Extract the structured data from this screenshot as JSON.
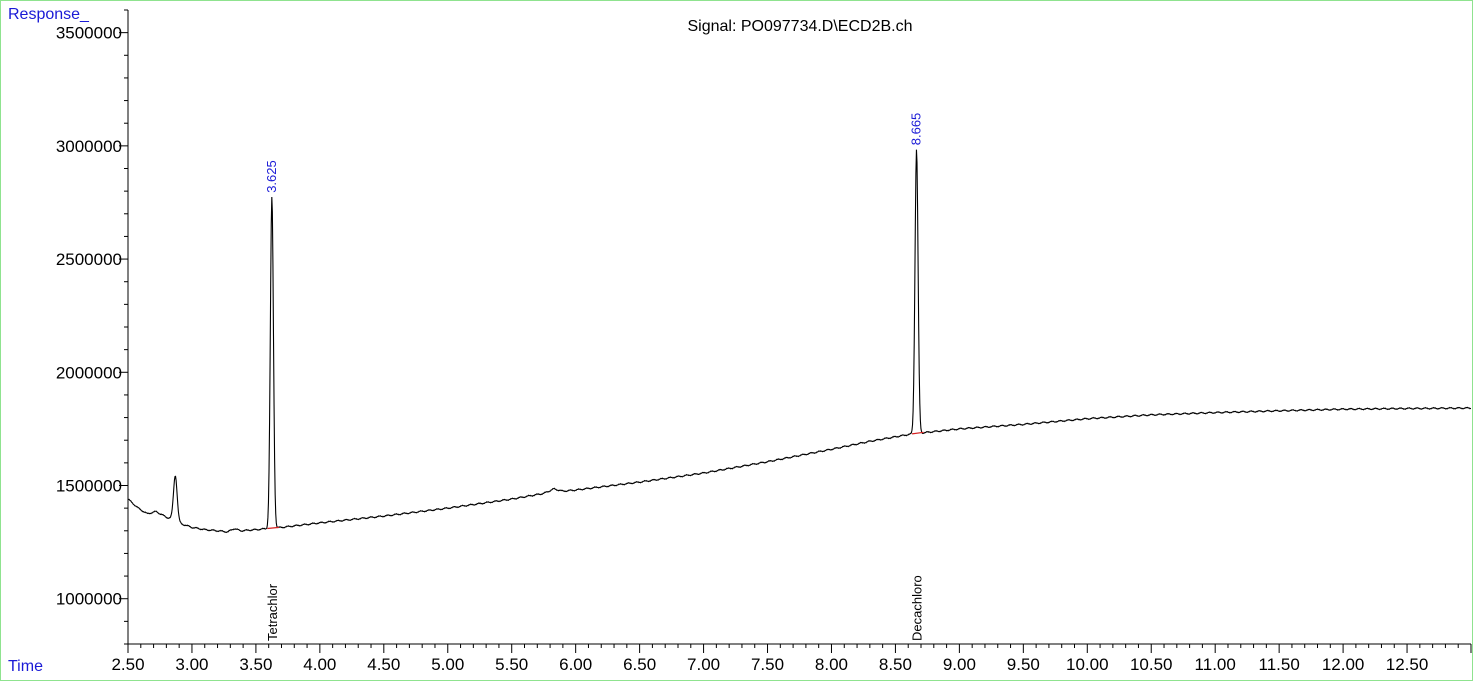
{
  "chart_data": {
    "type": "line",
    "title": "Signal: PO097734.D\\ECD2B.ch",
    "ylabel": "Response_",
    "xlabel": "Time",
    "xlim": [
      2.5,
      13.0
    ],
    "ylim": [
      800000,
      3600000
    ],
    "x_ticks": [
      "2.50",
      "3.00",
      "3.50",
      "4.00",
      "4.50",
      "5.00",
      "5.50",
      "6.00",
      "6.50",
      "7.00",
      "7.50",
      "8.00",
      "8.50",
      "9.00",
      "9.50",
      "10.00",
      "10.50",
      "11.00",
      "11.50",
      "12.00",
      "12.50"
    ],
    "y_ticks": [
      "1000000",
      "1500000",
      "2000000",
      "2500000",
      "3000000",
      "3500000"
    ],
    "colors": {
      "trace": "#000000",
      "baseline": "#d62020",
      "peak_label": "#1a1ad6",
      "frame": "#8fe38f"
    },
    "baseline_points": [
      [
        2.5,
        1440000
      ],
      [
        2.58,
        1400000
      ],
      [
        2.65,
        1375000
      ],
      [
        2.72,
        1385000
      ],
      [
        2.8,
        1360000
      ],
      [
        2.86,
        1350000
      ],
      [
        2.92,
        1330000
      ],
      [
        3.0,
        1315000
      ],
      [
        3.1,
        1305000
      ],
      [
        3.2,
        1300000
      ],
      [
        3.28,
        1295000
      ],
      [
        3.33,
        1310000
      ],
      [
        3.38,
        1300000
      ],
      [
        3.5,
        1305000
      ],
      [
        3.6,
        1310000
      ],
      [
        3.7,
        1315000
      ],
      [
        3.85,
        1325000
      ],
      [
        4.0,
        1335000
      ],
      [
        4.5,
        1365000
      ],
      [
        5.0,
        1400000
      ],
      [
        5.5,
        1440000
      ],
      [
        5.75,
        1465000
      ],
      [
        5.83,
        1485000
      ],
      [
        5.9,
        1475000
      ],
      [
        6.0,
        1480000
      ],
      [
        6.5,
        1515000
      ],
      [
        7.0,
        1555000
      ],
      [
        7.5,
        1605000
      ],
      [
        8.0,
        1660000
      ],
      [
        8.3,
        1695000
      ],
      [
        8.6,
        1725000
      ],
      [
        8.75,
        1735000
      ],
      [
        9.0,
        1750000
      ],
      [
        9.5,
        1770000
      ],
      [
        10.0,
        1795000
      ],
      [
        10.5,
        1812000
      ],
      [
        11.0,
        1822000
      ],
      [
        11.5,
        1830000
      ],
      [
        12.0,
        1837000
      ],
      [
        12.5,
        1840000
      ],
      [
        13.0,
        1842000
      ]
    ],
    "peaks": [
      {
        "rt": 2.87,
        "height": 1545000,
        "width": 0.014,
        "label": ""
      },
      {
        "rt": 3.625,
        "height": 2775000,
        "width": 0.012,
        "label": "3.625",
        "compound": "Tetrachlor"
      },
      {
        "rt": 8.665,
        "height": 2985000,
        "width": 0.012,
        "label": "8.665",
        "compound": "Decachloro"
      }
    ],
    "integration_baselines": [
      {
        "x": [
          3.59,
          3.68
        ],
        "y": [
          1310000,
          1315000
        ]
      },
      {
        "x": [
          8.63,
          8.72
        ],
        "y": [
          1728000,
          1735000
        ]
      }
    ]
  }
}
